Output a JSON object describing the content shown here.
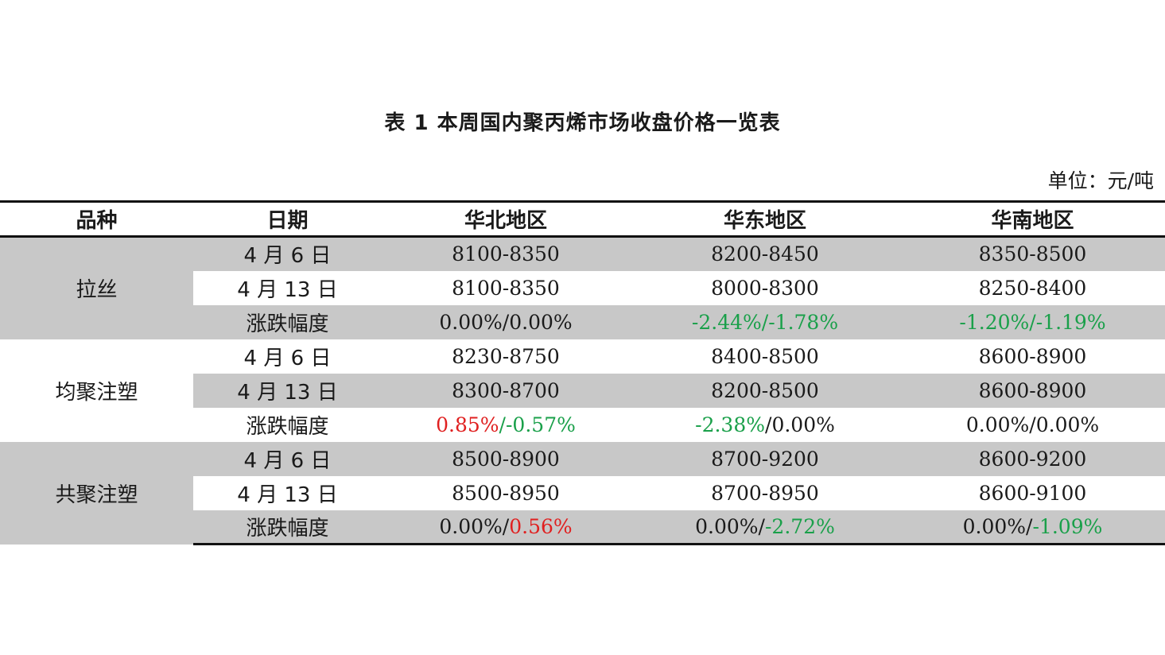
{
  "title": "表 1  本周国内聚丙烯市场收盘价格一览表",
  "unit": "单位：元/吨",
  "headers": [
    "品种",
    "日期",
    "华北地区",
    "华东地区",
    "华南地区"
  ],
  "colors": {
    "up": "#e02020",
    "down": "#1aa04a",
    "shade": "#c8c8c8"
  },
  "groups": [
    {
      "name": "拉丝",
      "rows": [
        {
          "label": "4 月 6 日",
          "north": "8100-8350",
          "east": "8200-8450",
          "south": "8350-8500"
        },
        {
          "label": "4 月 13 日",
          "north": "8100-8350",
          "east": "8000-8300",
          "south": "8250-8400"
        },
        {
          "label": "涨跌幅度",
          "north": {
            "a": "0.00%",
            "b": "0.00%"
          },
          "east": {
            "a": "-2.44%",
            "b": "-1.78%"
          },
          "south": {
            "a": "-1.20%",
            "b": "-1.19%"
          }
        }
      ]
    },
    {
      "name": "均聚注塑",
      "rows": [
        {
          "label": "4 月 6 日",
          "north": "8230-8750",
          "east": "8400-8500",
          "south": "8600-8900"
        },
        {
          "label": "4 月 13 日",
          "north": "8300-8700",
          "east": "8200-8500",
          "south": "8600-8900"
        },
        {
          "label": "涨跌幅度",
          "north": {
            "a": "0.85%",
            "b": "-0.57%"
          },
          "east": {
            "a": "-2.38%",
            "b": "0.00%"
          },
          "south": {
            "a": "0.00%",
            "b": "0.00%"
          }
        }
      ]
    },
    {
      "name": "共聚注塑",
      "rows": [
        {
          "label": "4 月 6 日",
          "north": "8500-8900",
          "east": "8700-9200",
          "south": "8600-9200"
        },
        {
          "label": "4 月 13 日",
          "north": "8500-8950",
          "east": "8700-8950",
          "south": "8600-9100"
        },
        {
          "label": "涨跌幅度",
          "north": {
            "a": "0.00%",
            "b": "0.56%"
          },
          "east": {
            "a": "0.00%",
            "b": "-2.72%"
          },
          "south": {
            "a": "0.00%",
            "b": "-1.09%"
          }
        }
      ]
    }
  ]
}
